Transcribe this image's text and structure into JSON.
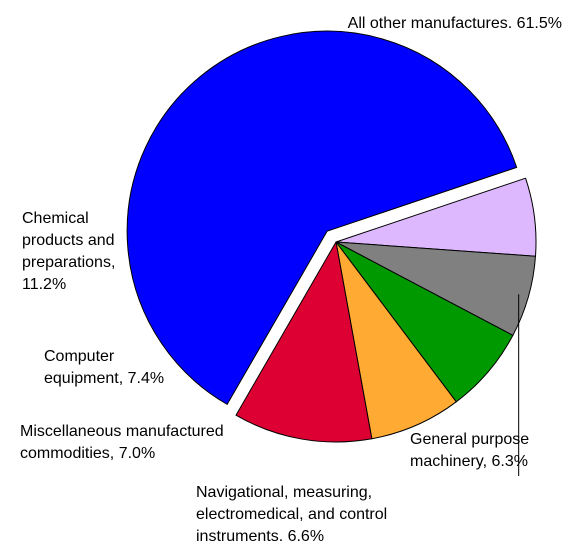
{
  "chart_data": {
    "type": "pie",
    "title": "",
    "legend": "none",
    "slices": [
      {
        "name": "All other manufactures",
        "value": 61.5,
        "color": "#0000ff",
        "exploded": true,
        "label_lines": [
          "All other manufactures. 61.5%"
        ]
      },
      {
        "name": "General purpose machinery",
        "value": 6.3,
        "color": "#ddb8ff",
        "exploded": false,
        "label_lines": [
          "General purpose",
          "machinery, 6.3%"
        ]
      },
      {
        "name": "Navigational, measuring, electromedical, and control instruments",
        "value": 6.6,
        "color": "#808080",
        "exploded": false,
        "label_lines": [
          "Navigational, measuring,",
          "electromedical, and control",
          "instruments. 6.6%"
        ]
      },
      {
        "name": "Miscellaneous manufactured commodities",
        "value": 7.0,
        "color": "#009900",
        "exploded": false,
        "label_lines": [
          "Miscellaneous manufactured",
          "commodities, 7.0%"
        ]
      },
      {
        "name": "Computer equipment",
        "value": 7.4,
        "color": "#ffaa33",
        "exploded": false,
        "label_lines": [
          "Computer",
          "equipment, 7.4%"
        ]
      },
      {
        "name": "Chemical products and preparations",
        "value": 11.2,
        "color": "#dd0033",
        "exploded": false,
        "label_lines": [
          "Chemical",
          "products and",
          "preparations,",
          "11.2%"
        ]
      }
    ]
  }
}
